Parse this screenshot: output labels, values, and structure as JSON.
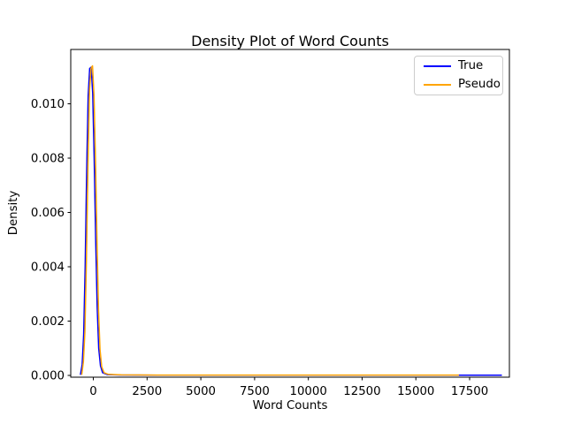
{
  "figure": {
    "background": "#ffffff",
    "text_color": "#000000",
    "spine_color": "#000000"
  },
  "chart_data": {
    "type": "line",
    "subtype": "kde-density",
    "title": "Density Plot of Word Counts",
    "xlabel": "Word Counts",
    "ylabel": "Density",
    "xlim": [
      -1050,
      19350
    ],
    "ylim": [
      -6.5e-05,
      0.012
    ],
    "xticks": [
      0,
      2500,
      5000,
      7500,
      10000,
      12500,
      15000,
      17500
    ],
    "yticks": [
      0,
      0.002,
      0.004,
      0.006,
      0.008,
      0.01
    ],
    "ytick_decimals": 3,
    "grid": false,
    "legend": {
      "position": "upper right"
    },
    "peak_summary": "Both densities spike sharply near word count 0 with peak density ~0.0114, then are ~0 for all larger word counts; True support extends to ~19000, Pseudo to ~17000",
    "series": [
      {
        "name": "True",
        "color": "#0000ff",
        "points": [
          [
            -600,
            2e-05
          ],
          [
            -520,
            0.0004
          ],
          [
            -450,
            0.0015
          ],
          [
            -380,
            0.004
          ],
          [
            -310,
            0.0075
          ],
          [
            -240,
            0.0103
          ],
          [
            -170,
            0.0113
          ],
          [
            -100,
            0.01135
          ],
          [
            -30,
            0.0104
          ],
          [
            40,
            0.008
          ],
          [
            110,
            0.005
          ],
          [
            180,
            0.0025
          ],
          [
            250,
            0.001
          ],
          [
            330,
            0.00035
          ],
          [
            430,
            0.0001
          ],
          [
            650,
            3e-05
          ],
          [
            1200,
            1.5e-05
          ],
          [
            3000,
            1e-05
          ],
          [
            6000,
            1e-05
          ],
          [
            10000,
            1e-05
          ],
          [
            14000,
            1e-05
          ],
          [
            19000,
            1e-05
          ]
        ]
      },
      {
        "name": "Pseudo",
        "color": "#ffa500",
        "points": [
          [
            -540,
            2e-05
          ],
          [
            -460,
            0.0005
          ],
          [
            -390,
            0.0016
          ],
          [
            -320,
            0.0042
          ],
          [
            -250,
            0.0078
          ],
          [
            -180,
            0.0105
          ],
          [
            -110,
            0.0113
          ],
          [
            -40,
            0.0114
          ],
          [
            30,
            0.0103
          ],
          [
            100,
            0.0079
          ],
          [
            170,
            0.0049
          ],
          [
            240,
            0.0024
          ],
          [
            310,
            0.00095
          ],
          [
            390,
            0.00032
          ],
          [
            500,
            0.0001
          ],
          [
            700,
            4e-05
          ],
          [
            1300,
            2e-05
          ],
          [
            3000,
            1.2e-05
          ],
          [
            6000,
            1.2e-05
          ],
          [
            10000,
            1.2e-05
          ],
          [
            13000,
            1.2e-05
          ],
          [
            17000,
            1.2e-05
          ]
        ]
      }
    ]
  }
}
